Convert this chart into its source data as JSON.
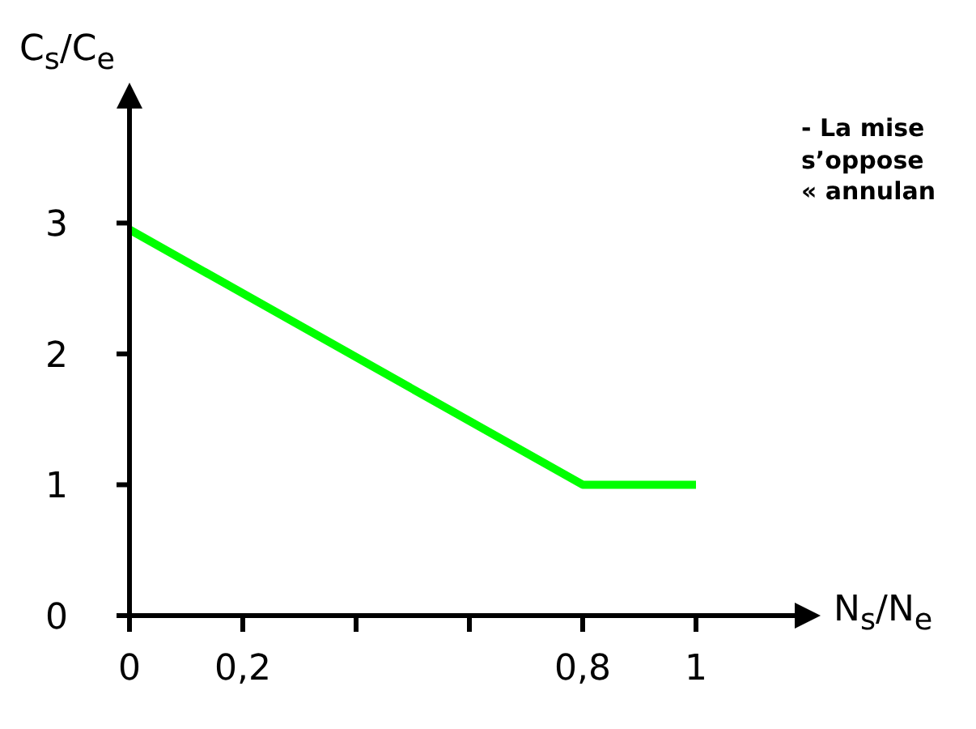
{
  "chart_data": {
    "type": "line",
    "xlabel": "N$_{s}$/N$_{e}$",
    "ylabel": "C$_{s}$/C$_{e}$",
    "x": [
      0,
      0.8,
      1
    ],
    "series": [
      {
        "color": "#00ff00",
        "values": [
          2.95,
          1,
          1
        ]
      }
    ],
    "xlim": [
      0,
      1.18
    ],
    "ylim": [
      0,
      3.9
    ],
    "xticks": [
      0,
      {
        "value": 0.2,
        "label": "0,2"
      },
      {
        "value": 0.4,
        "label": null
      },
      {
        "value": 0.6,
        "label": null
      },
      {
        "value": 0.8,
        "label": "0,8"
      },
      1
    ],
    "yticks": [
      0,
      1,
      2,
      3
    ],
    "marker": "none",
    "line_style": "solid",
    "annotations": [
      "- La mise\ns’oppose\n« annulan"
    ]
  }
}
